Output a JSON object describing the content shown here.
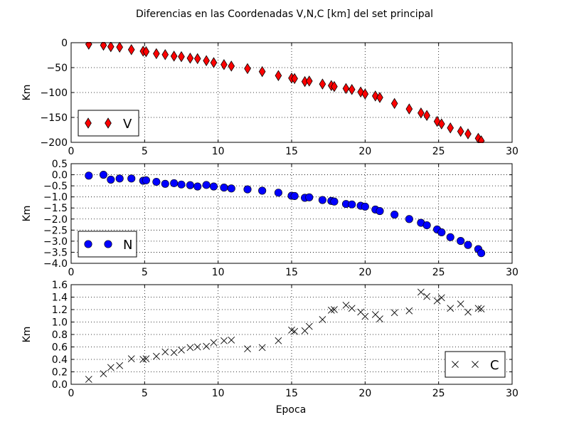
{
  "figure": {
    "title": "Diferencias en las Coordenadas V,N,C [km] del set principal",
    "xlabel": "Epoca"
  },
  "chart_data": [
    {
      "type": "scatter",
      "ylabel": "Km",
      "xlim": [
        0,
        30
      ],
      "ylim": [
        -200,
        0
      ],
      "xticks": [
        "0",
        "5",
        "10",
        "15",
        "20",
        "25",
        "30"
      ],
      "yticks": [
        "0",
        "−50",
        "−100",
        "−150",
        "−200"
      ],
      "ytick_values": [
        0,
        -50,
        -100,
        -150,
        -200
      ],
      "grid": true,
      "legend": "lower-left",
      "series": [
        {
          "name": "V",
          "marker": "diamond",
          "color": "#ff0000",
          "x": [
            1.2,
            2.2,
            2.7,
            3.3,
            4.1,
            4.9,
            5.1,
            5.8,
            6.4,
            7.0,
            7.5,
            8.1,
            8.6,
            9.2,
            9.7,
            10.4,
            10.9,
            12.0,
            13.0,
            14.1,
            15.0,
            15.2,
            15.9,
            16.2,
            17.1,
            17.7,
            17.9,
            18.7,
            19.1,
            19.7,
            20.0,
            20.7,
            21.0,
            22.0,
            23.0,
            23.8,
            24.2,
            24.9,
            25.2,
            25.8,
            26.5,
            27.0,
            27.7,
            27.9
          ],
          "y": [
            -3,
            -5,
            -8,
            -9,
            -14,
            -17,
            -18,
            -22,
            -24,
            -27,
            -28,
            -31,
            -32,
            -36,
            -40,
            -44,
            -47,
            -52,
            -58,
            -66,
            -71,
            -72,
            -78,
            -77,
            -83,
            -86,
            -88,
            -92,
            -94,
            -99,
            -103,
            -107,
            -110,
            -122,
            -133,
            -141,
            -146,
            -158,
            -163,
            -171,
            -178,
            -183,
            -192,
            -197
          ]
        }
      ]
    },
    {
      "type": "scatter",
      "ylabel": "Km",
      "xlim": [
        0,
        30
      ],
      "ylim": [
        -4.0,
        0.5
      ],
      "xticks": [
        "0",
        "5",
        "10",
        "15",
        "20",
        "25",
        "30"
      ],
      "yticks": [
        "0.5",
        "0.0",
        "−0.5",
        "−1.0",
        "−1.5",
        "−2.0",
        "−2.5",
        "−3.0",
        "−3.5",
        "−4.0"
      ],
      "ytick_values": [
        0.5,
        0.0,
        -0.5,
        -1.0,
        -1.5,
        -2.0,
        -2.5,
        -3.0,
        -3.5,
        -4.0
      ],
      "grid": true,
      "legend": "lower-left",
      "series": [
        {
          "name": "N",
          "marker": "circle",
          "color": "#0000ff",
          "x": [
            1.2,
            2.2,
            2.7,
            3.3,
            4.1,
            4.9,
            5.1,
            5.8,
            6.4,
            7.0,
            7.5,
            8.1,
            8.6,
            9.2,
            9.7,
            10.4,
            10.9,
            12.0,
            13.0,
            14.1,
            15.0,
            15.2,
            15.9,
            16.2,
            17.1,
            17.7,
            17.9,
            18.7,
            19.1,
            19.7,
            20.0,
            20.7,
            21.0,
            22.0,
            23.0,
            23.8,
            24.2,
            24.9,
            25.2,
            25.8,
            26.5,
            27.0,
            27.7,
            27.9
          ],
          "y": [
            -0.04,
            0.0,
            -0.22,
            -0.17,
            -0.17,
            -0.27,
            -0.25,
            -0.32,
            -0.41,
            -0.38,
            -0.44,
            -0.47,
            -0.53,
            -0.46,
            -0.53,
            -0.58,
            -0.62,
            -0.66,
            -0.72,
            -0.81,
            -0.95,
            -0.96,
            -1.04,
            -1.02,
            -1.14,
            -1.18,
            -1.21,
            -1.32,
            -1.34,
            -1.4,
            -1.44,
            -1.57,
            -1.64,
            -1.8,
            -2.0,
            -2.17,
            -2.28,
            -2.47,
            -2.6,
            -2.82,
            -2.99,
            -3.17,
            -3.36,
            -3.54
          ]
        }
      ]
    },
    {
      "type": "scatter",
      "ylabel": "Km",
      "xlim": [
        0,
        30
      ],
      "ylim": [
        0.0,
        1.6
      ],
      "xticks": [
        "0",
        "5",
        "10",
        "15",
        "20",
        "25",
        "30"
      ],
      "yticks": [
        "1.6",
        "1.4",
        "1.2",
        "1.0",
        "0.8",
        "0.6",
        "0.4",
        "0.2",
        "0.0"
      ],
      "ytick_values": [
        1.6,
        1.4,
        1.2,
        1.0,
        0.8,
        0.6,
        0.4,
        0.2,
        0.0
      ],
      "grid": true,
      "legend": "lower-right",
      "series": [
        {
          "name": "C",
          "marker": "x",
          "color": "#000000",
          "x": [
            1.2,
            2.2,
            2.7,
            3.3,
            4.1,
            4.9,
            5.1,
            5.8,
            6.4,
            7.0,
            7.5,
            8.1,
            8.6,
            9.2,
            9.7,
            10.4,
            10.9,
            12.0,
            13.0,
            14.1,
            15.0,
            15.2,
            15.9,
            16.2,
            17.1,
            17.7,
            17.9,
            18.7,
            19.1,
            19.7,
            20.0,
            20.7,
            21.0,
            22.0,
            23.0,
            23.8,
            24.2,
            24.9,
            25.2,
            25.8,
            26.5,
            27.0,
            27.7,
            27.9
          ],
          "y": [
            0.08,
            0.17,
            0.27,
            0.3,
            0.41,
            0.4,
            0.41,
            0.45,
            0.52,
            0.51,
            0.55,
            0.59,
            0.6,
            0.61,
            0.67,
            0.7,
            0.71,
            0.57,
            0.59,
            0.7,
            0.87,
            0.85,
            0.86,
            0.93,
            1.04,
            1.19,
            1.2,
            1.27,
            1.22,
            1.16,
            1.09,
            1.12,
            1.05,
            1.15,
            1.18,
            1.48,
            1.41,
            1.34,
            1.39,
            1.22,
            1.29,
            1.16,
            1.22,
            1.21
          ]
        }
      ]
    }
  ]
}
